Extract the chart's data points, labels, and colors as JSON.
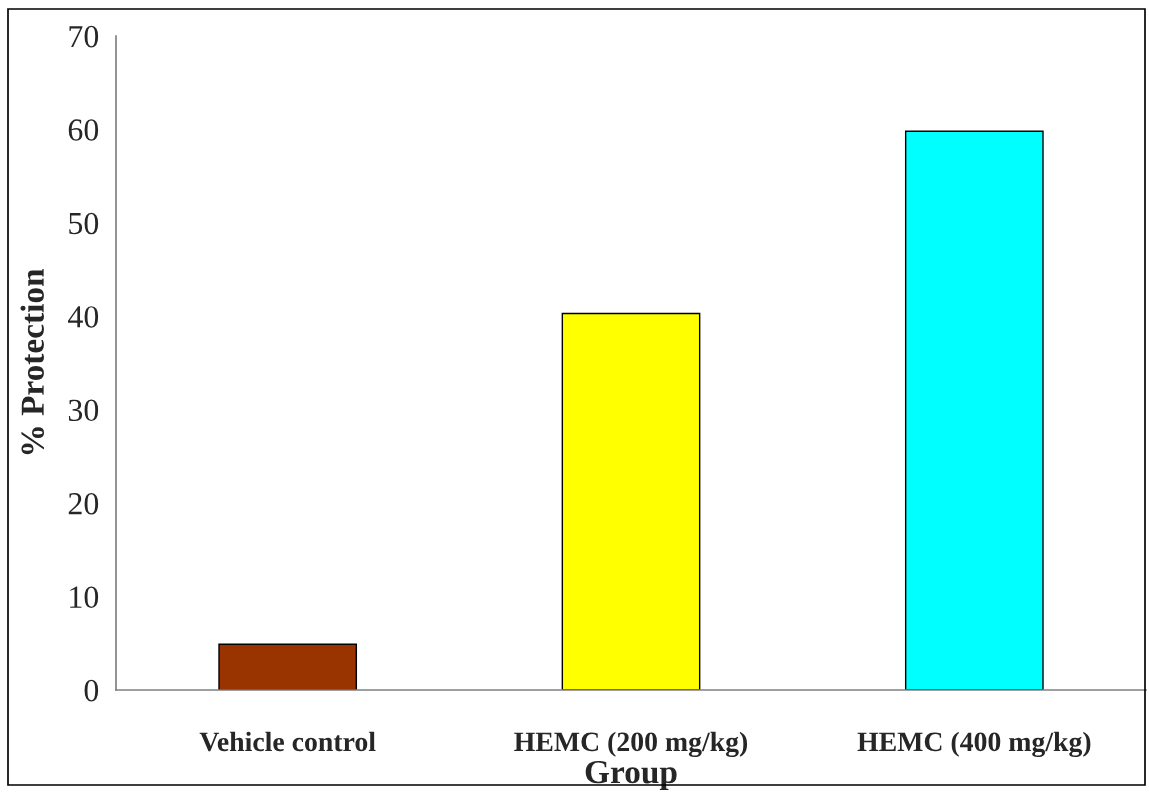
{
  "chart_data": {
    "type": "bar",
    "xlabel": "Group",
    "ylabel": "% Protection",
    "categories": [
      "Vehicle control",
      "HEMC (200 mg/kg)",
      "HEMC (400 mg/kg)"
    ],
    "values": [
      4.9,
      40.3,
      59.8
    ],
    "colors": [
      "#993300",
      "#ffff00",
      "#00ffff"
    ],
    "ylim": [
      0,
      70
    ],
    "yticks": [
      0,
      10,
      20,
      30,
      40,
      50,
      60,
      70
    ]
  }
}
